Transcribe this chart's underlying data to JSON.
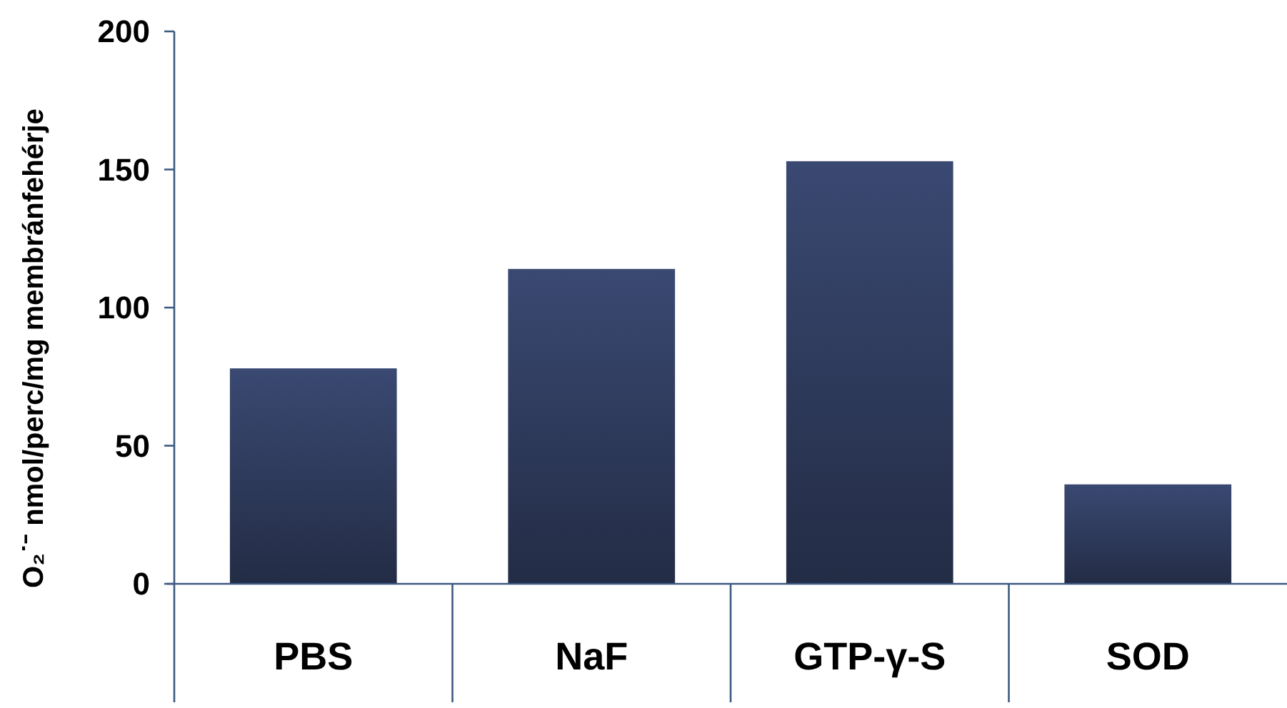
{
  "chart_data": {
    "type": "bar",
    "ylabel": "O₂˙⁻ nmol/perc/mg membránfehérje",
    "categories": [
      "PBS",
      "NaF",
      "GTP-γ-S",
      "SOD"
    ],
    "values": [
      78,
      114,
      153,
      36
    ],
    "color": "#2f3b5c",
    "ylim": [
      0,
      200
    ],
    "yticks": [
      0,
      50,
      100,
      150,
      200
    ],
    "grid": false
  }
}
